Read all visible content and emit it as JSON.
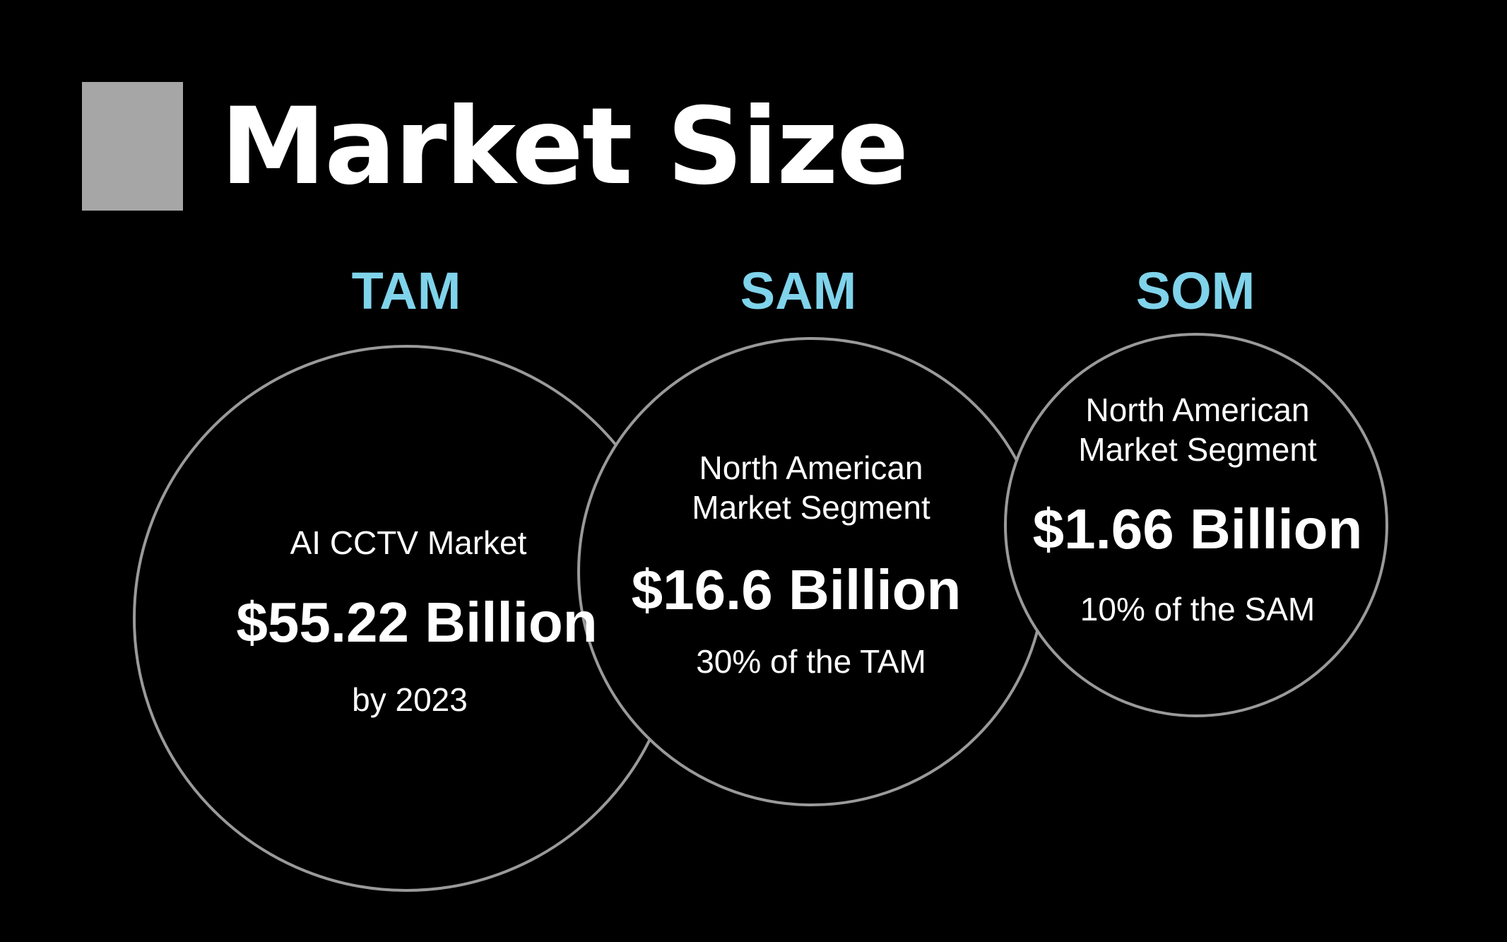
{
  "title": "Market Size",
  "colors": {
    "background": "#000000",
    "accent": "#7fd3ea",
    "title_block": "#a6a6a6",
    "circle_stroke": "#9a9a9a",
    "text": "#ffffff"
  },
  "markets": [
    {
      "label": "TAM",
      "description": "AI CCTV Market",
      "value": "$55.22 Billion",
      "note": "by 2023"
    },
    {
      "label": "SAM",
      "description_line1": "North American",
      "description_line2": "Market Segment",
      "value": "$16.6 Billion",
      "note": "30% of the TAM"
    },
    {
      "label": "SOM",
      "description_line1": "North American",
      "description_line2": "Market Segment",
      "value": "$1.66 Billion",
      "note": "10% of the SAM"
    }
  ]
}
